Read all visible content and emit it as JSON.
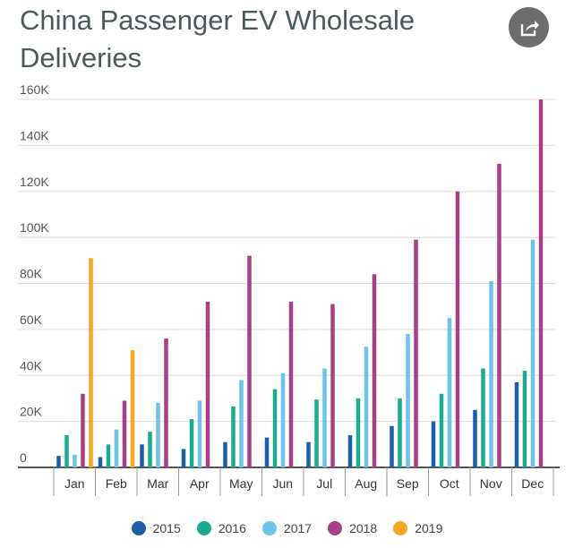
{
  "title": "China Passenger EV Wholesale Deliveries",
  "share_icon": "share-icon",
  "chart_data": {
    "type": "bar",
    "title": "China Passenger EV Wholesale Deliveries",
    "xlabel": "",
    "ylabel": "",
    "ylim": [
      0,
      160000
    ],
    "yticks": [
      "0",
      "20K",
      "40K",
      "60K",
      "80K",
      "100K",
      "120K",
      "140K",
      "160K"
    ],
    "grid": true,
    "legend": "bottom",
    "categories": [
      "Jan",
      "Feb",
      "Mar",
      "Apr",
      "May",
      "Jun",
      "Jul",
      "Aug",
      "Sep",
      "Oct",
      "Nov",
      "Dec"
    ],
    "series": [
      {
        "name": "2015",
        "color": "#1a5fa8",
        "values": [
          5000,
          4500,
          10000,
          8000,
          11000,
          13000,
          11000,
          14000,
          18000,
          20000,
          25000,
          37000
        ]
      },
      {
        "name": "2016",
        "color": "#1aab8f",
        "values": [
          14000,
          10000,
          15500,
          21000,
          26500,
          34000,
          29500,
          30000,
          30000,
          32000,
          43000,
          42000
        ]
      },
      {
        "name": "2017",
        "color": "#6ec3e8",
        "values": [
          5500,
          16500,
          28000,
          29000,
          38000,
          41000,
          43000,
          52500,
          58000,
          65000,
          81000,
          99000
        ]
      },
      {
        "name": "2018",
        "color": "#a83f86",
        "values": [
          32000,
          29000,
          56000,
          72000,
          92000,
          72000,
          71000,
          84000,
          99000,
          120000,
          132000,
          160000
        ]
      },
      {
        "name": "2019",
        "color": "#f5a623",
        "values": [
          91000,
          51000,
          null,
          null,
          null,
          null,
          null,
          null,
          null,
          null,
          null,
          null
        ]
      }
    ]
  }
}
